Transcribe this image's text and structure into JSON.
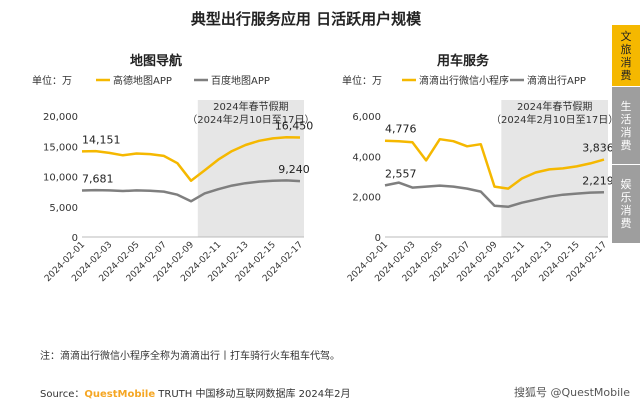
{
  "title": "典型出行服务应用 日活跃用户规模",
  "side_tabs": [
    {
      "label": "文旅消费",
      "active": true
    },
    {
      "label": "生活消费",
      "active": false
    },
    {
      "label": "娱乐消费",
      "active": false
    }
  ],
  "note": "注：滴滴出行微信小程序全称为滴滴出行丨打车骑行火车租车代驾。",
  "source": {
    "prefix": "Source：",
    "brand": "QuestMobile",
    "rest": " TRUTH 中国移动互联网数据库 2024年2月"
  },
  "watermark": "搜狐号 @QuestMobile",
  "colors": {
    "primary": "#F5B800",
    "secondary": "#7F7F7F",
    "shade": "#E6E6E6",
    "tab_active": "#F5B800",
    "tab_inactive": "#9E9E9E"
  },
  "chart_data": [
    {
      "type": "line",
      "title": "地图导航",
      "unit_label": "单位：万",
      "x": [
        "2024-02-01",
        "2024-02-02",
        "2024-02-03",
        "2024-02-04",
        "2024-02-05",
        "2024-02-06",
        "2024-02-07",
        "2024-02-08",
        "2024-02-09",
        "2024-02-10",
        "2024-02-11",
        "2024-02-12",
        "2024-02-13",
        "2024-02-14",
        "2024-02-15",
        "2024-02-16",
        "2024-02-17"
      ],
      "x_ticks": [
        "2024-02-01",
        "2024-02-03",
        "2024-02-05",
        "2024-02-07",
        "2024-02-09",
        "2024-02-11",
        "2024-02-13",
        "2024-02-15",
        "2024-02-17"
      ],
      "ylim": [
        0,
        20000
      ],
      "y_ticks": [
        "0",
        "5,000",
        "10,000",
        "15,000",
        "20,000"
      ],
      "shade_label": [
        "2024年春节假期",
        "（2024年2月10日至17日）"
      ],
      "shade_range": [
        "2024-02-10",
        "2024-02-17"
      ],
      "legend_position": "top",
      "series": [
        {
          "name": "高德地图APP",
          "color": "primary",
          "values": [
            14151,
            14200,
            13900,
            13500,
            13800,
            13700,
            13400,
            12200,
            9300,
            11000,
            12800,
            14200,
            15200,
            15900,
            16300,
            16500,
            16450
          ],
          "labels": [
            {
              "index": 0,
              "text": "14,151"
            },
            {
              "index": 16,
              "text": "16,450"
            }
          ]
        },
        {
          "name": "百度地图APP",
          "color": "secondary",
          "values": [
            7681,
            7750,
            7700,
            7600,
            7700,
            7650,
            7500,
            7000,
            5900,
            7200,
            7900,
            8500,
            8900,
            9150,
            9300,
            9350,
            9240
          ],
          "labels": [
            {
              "index": 0,
              "text": "7,681"
            },
            {
              "index": 16,
              "text": "9,240"
            }
          ]
        }
      ]
    },
    {
      "type": "line",
      "title": "用车服务",
      "unit_label": "单位：万",
      "x": [
        "2024-02-01",
        "2024-02-02",
        "2024-02-03",
        "2024-02-04",
        "2024-02-05",
        "2024-02-06",
        "2024-02-07",
        "2024-02-08",
        "2024-02-09",
        "2024-02-10",
        "2024-02-11",
        "2024-02-12",
        "2024-02-13",
        "2024-02-14",
        "2024-02-15",
        "2024-02-16",
        "2024-02-17"
      ],
      "x_ticks": [
        "2024-02-01",
        "2024-02-03",
        "2024-02-05",
        "2024-02-07",
        "2024-02-09",
        "2024-02-11",
        "2024-02-13",
        "2024-02-15",
        "2024-02-17"
      ],
      "ylim": [
        0,
        6000
      ],
      "y_ticks": [
        "0",
        "2,000",
        "4,000",
        "6,000"
      ],
      "shade_label": [
        "2024年春节假期",
        "（2024年2月10日至17日）"
      ],
      "shade_range": [
        "2024-02-10",
        "2024-02-17"
      ],
      "legend_position": "top",
      "series": [
        {
          "name": "滴滴出行微信小程序",
          "color": "primary",
          "values": [
            4776,
            4750,
            4700,
            3800,
            4850,
            4750,
            4500,
            4600,
            2500,
            2400,
            2900,
            3200,
            3350,
            3400,
            3500,
            3650,
            3836
          ],
          "labels": [
            {
              "index": 0,
              "text": "4,776"
            },
            {
              "index": 16,
              "text": "3,836"
            }
          ]
        },
        {
          "name": "滴滴出行APP",
          "color": "secondary",
          "values": [
            2557,
            2700,
            2450,
            2500,
            2550,
            2500,
            2400,
            2250,
            1550,
            1500,
            1700,
            1850,
            2000,
            2100,
            2150,
            2200,
            2219
          ],
          "labels": [
            {
              "index": 0,
              "text": "2,557"
            },
            {
              "index": 16,
              "text": "2,219"
            }
          ]
        }
      ]
    }
  ]
}
